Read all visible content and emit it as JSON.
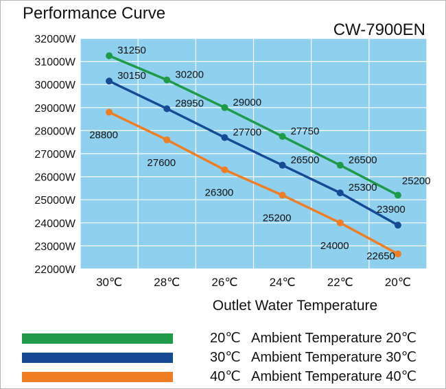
{
  "header": {
    "title": "Performance Curve",
    "model": "CW-7900EN"
  },
  "chart_data": {
    "type": "line",
    "title": "Performance Curve",
    "subtitle": "CW-7900EN",
    "xlabel": "Outlet Water Temperature",
    "ylabel": "",
    "categories": [
      "30℃",
      "28℃",
      "26℃",
      "24℃",
      "22℃",
      "20℃"
    ],
    "y_ticks": [
      "32000W",
      "31000W",
      "30000W",
      "29000W",
      "28000W",
      "27000W",
      "26000W",
      "25000W",
      "24000W",
      "23000W",
      "22000W"
    ],
    "ylim": [
      22000,
      32000
    ],
    "grid": true,
    "background_color": "#8fd0ee",
    "grid_color": "#ffffff",
    "series": [
      {
        "name": "20℃",
        "color": "#1e9a48",
        "values": [
          31250,
          30200,
          29000,
          27750,
          26500,
          25200
        ]
      },
      {
        "name": "30℃",
        "color": "#174a94",
        "values": [
          30150,
          28950,
          27700,
          26500,
          25300,
          23900
        ]
      },
      {
        "name": "40℃",
        "color": "#ee7d24",
        "values": [
          28800,
          27600,
          26300,
          25200,
          24000,
          22650
        ]
      }
    ]
  },
  "legend": [
    {
      "temp": "20℃",
      "label": "Ambient Temperature 20℃",
      "color": "#1e9a48"
    },
    {
      "temp": "30℃",
      "label": "Ambient Temperature 30℃",
      "color": "#174a94"
    },
    {
      "temp": "40℃",
      "label": "Ambient Temperature 40℃",
      "color": "#ee7d24"
    }
  ]
}
